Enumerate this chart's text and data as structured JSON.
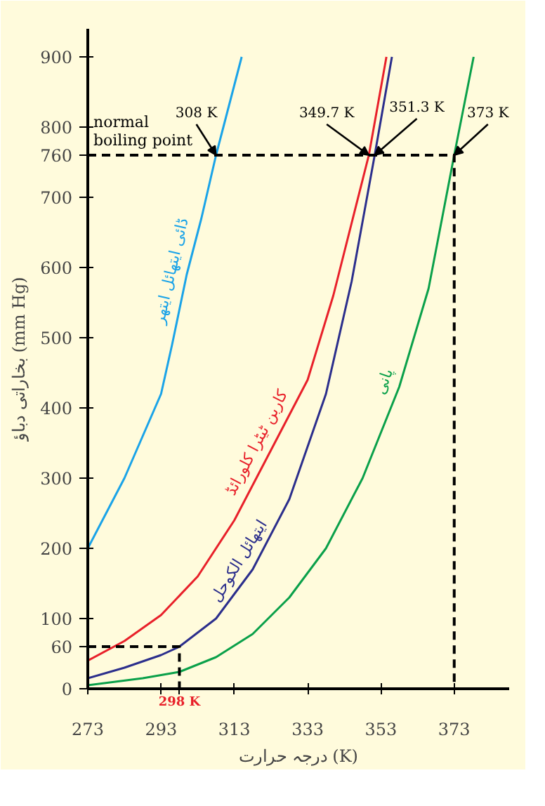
{
  "chart_data": {
    "type": "line",
    "xlabel": "درجہ حرارت (K)",
    "ylabel": "بخاراتی دباؤ (mm Hg)",
    "xlim": [
      273,
      388
    ],
    "ylim": [
      0,
      940
    ],
    "xticks": [
      273,
      293,
      313,
      333,
      353,
      373
    ],
    "yticks": [
      0,
      60,
      100,
      200,
      300,
      400,
      500,
      600,
      700,
      760,
      800,
      900
    ],
    "grid": false,
    "marker": "none",
    "series": [
      {
        "name": "ڈائی ایتھائل ایتھر",
        "color": "#1aa3e8",
        "x": [
          273,
          278,
          283,
          288,
          293,
          296,
          300,
          304,
          308,
          312,
          315
        ],
        "values": [
          200,
          250,
          300,
          360,
          420,
          490,
          590,
          670,
          760,
          840,
          900
        ]
      },
      {
        "name": "کاربن ٹیٹرا کلورائڈ",
        "color": "#e8202a",
        "x": [
          273,
          283,
          293,
          303,
          313,
          323,
          333,
          340,
          349.7,
          354.5
        ],
        "values": [
          40,
          68,
          105,
          160,
          240,
          340,
          440,
          560,
          760,
          900
        ]
      },
      {
        "name": "ایتھائل الکوحل",
        "color": "#2b2e8c",
        "x": [
          273,
          283,
          293,
          298,
          308,
          318,
          328,
          338,
          345,
          351.3,
          356
        ],
        "values": [
          15,
          30,
          48,
          60,
          100,
          170,
          270,
          420,
          580,
          760,
          900
        ]
      },
      {
        "name": "پانی",
        "color": "#0aa04a",
        "x": [
          273,
          288,
          298,
          308,
          318,
          328,
          338,
          348,
          358,
          366,
          373,
          378.3
        ],
        "values": [
          5,
          15,
          24,
          45,
          78,
          130,
          200,
          300,
          430,
          570,
          760,
          900
        ]
      },
      {
        "color": "#000000",
        "line_style": "dashed",
        "x": [
          273,
          373,
          373
        ],
        "values": [
          760,
          760,
          0
        ]
      },
      {
        "color": "#000000",
        "line_style": "dashed",
        "x": [
          273,
          298,
          298
        ],
        "values": [
          60,
          60,
          0
        ]
      }
    ],
    "annotations": [
      "normal boiling point",
      {
        "text": "308 K",
        "x": 308,
        "y": 760
      },
      {
        "text": "349.7 K",
        "x": 349.7,
        "y": 760
      },
      {
        "text": "351.3 K",
        "x": 351.3,
        "y": 760
      },
      {
        "text": "373 K",
        "x": 373,
        "y": 760
      },
      {
        "text": "298 K",
        "x": 298,
        "y": 0
      }
    ]
  }
}
